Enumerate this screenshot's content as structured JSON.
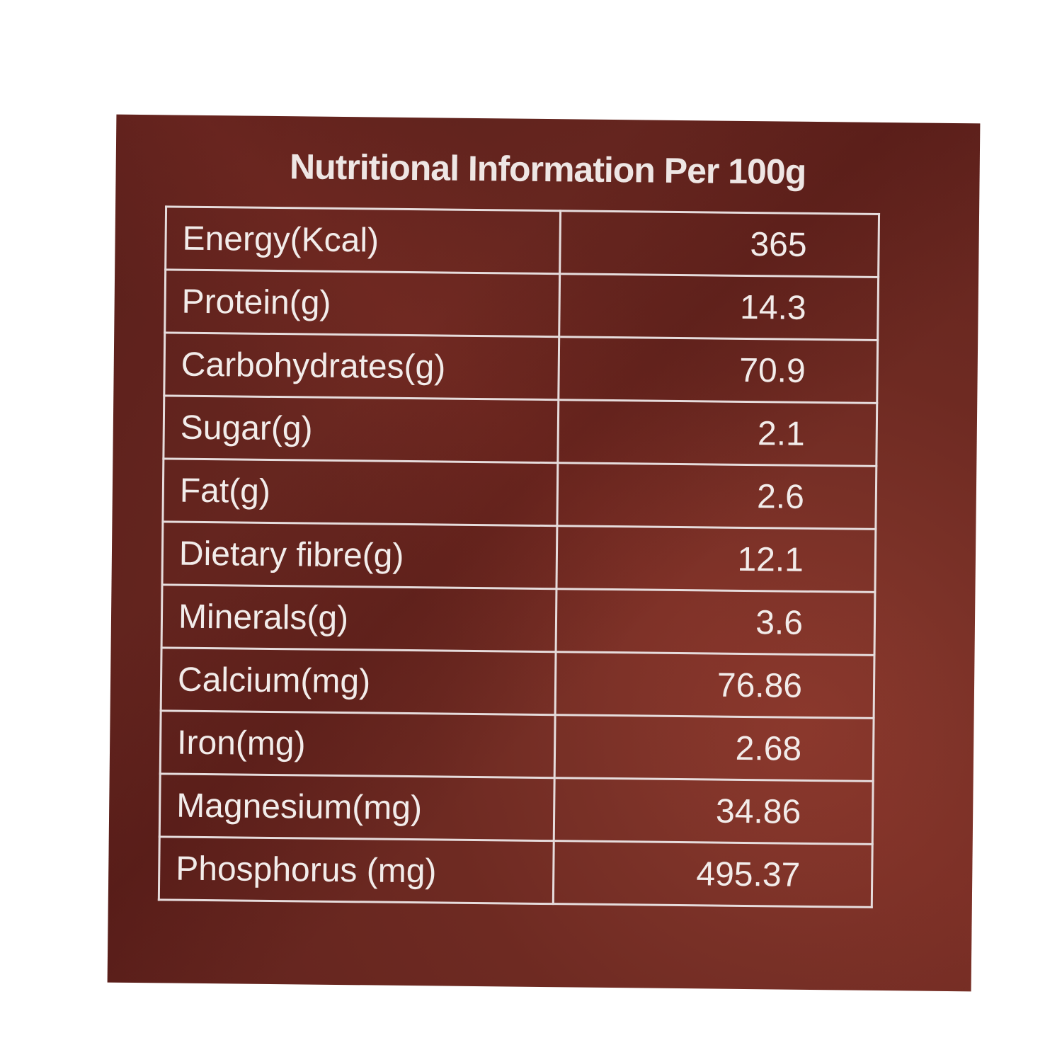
{
  "title": "Nutritional Information Per 100g",
  "table": {
    "rows": [
      [
        "Energy(Kcal)",
        365
      ],
      [
        "Protein(g)",
        14.3
      ],
      [
        "Carbohydrates(g)",
        70.9
      ],
      [
        "Sugar(g)",
        2.1
      ],
      [
        "Fat(g)",
        2.6
      ],
      [
        "Dietary fibre(g)",
        12.1
      ],
      [
        "Minerals(g)",
        3.6
      ],
      [
        "Calcium(mg)",
        76.86
      ],
      [
        "Iron(mg)",
        2.68
      ],
      [
        "Magnesium(mg)",
        34.86
      ],
      [
        "Phosphorus (mg)",
        495.37
      ]
    ]
  }
}
